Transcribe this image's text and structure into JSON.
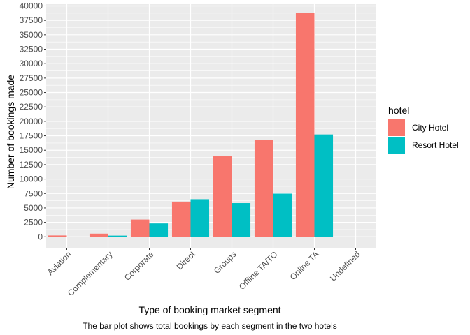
{
  "chart_data": {
    "type": "bar",
    "title": "",
    "xlabel": "Type of booking market segment",
    "ylabel": "Number of bookings made",
    "caption": "The bar plot shows total bookings by each segment in the two hotels",
    "categories": [
      "Aviation",
      "Complementary",
      "Corporate",
      "Direct",
      "Groups",
      "Offline TA/TO",
      "Online TA",
      "Undefined"
    ],
    "series": [
      {
        "name": "City Hotel",
        "color": "#F8766D",
        "values": [
          228,
          542,
          2986,
          6093,
          13975,
          16747,
          38748,
          2
        ]
      },
      {
        "name": "Resort Hotel",
        "color": "#00BFC4",
        "values": [
          0,
          201,
          2309,
          6513,
          5836,
          7472,
          17729,
          0
        ]
      }
    ],
    "ylim": [
      -1900,
      40300
    ],
    "yticks": [
      0,
      2500,
      5000,
      7500,
      10000,
      12500,
      15000,
      17500,
      20000,
      22500,
      25000,
      27500,
      30000,
      32500,
      35000,
      37500,
      40000
    ],
    "grid": true,
    "legend": {
      "title": "hotel",
      "position": "right"
    },
    "panel_color": "#EBEBEB"
  }
}
